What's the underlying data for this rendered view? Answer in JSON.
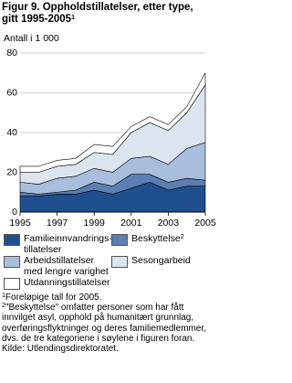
{
  "chart_data": {
    "type": "stacked_area",
    "title": "Figur 9. Oppholdstillatelser, etter type, gitt 1995-2005",
    "title_note": "1",
    "y_label": "Antall i 1 000",
    "x": [
      1995,
      1996,
      1997,
      1998,
      1999,
      2000,
      2001,
      2002,
      2003,
      2004,
      2005
    ],
    "xlim": [
      1995,
      2005
    ],
    "xticks": [
      1995,
      1997,
      1999,
      2001,
      2003,
      2005
    ],
    "ylim": [
      0,
      80
    ],
    "yticks": [
      0,
      20,
      40,
      60,
      80
    ],
    "grid": true,
    "series": [
      {
        "name": "Familieinnvandrings-\ntillatelser",
        "color": "#1f4f8f",
        "values": [
          8,
          8,
          9,
          9,
          11,
          9,
          12,
          15,
          11,
          13,
          13
        ]
      },
      {
        "name": "Beskyttelse",
        "note": "2",
        "color": "#5b7fb3",
        "values": [
          2,
          1,
          1,
          2,
          4,
          4,
          7,
          4,
          4,
          4,
          3
        ]
      },
      {
        "name": "Arbeidstillatelser\nmed lengre varighet",
        "color": "#a9bedd",
        "values": [
          5,
          5,
          7,
          7,
          7,
          7,
          8,
          9,
          9,
          15,
          19
        ]
      },
      {
        "name": "Sesongarbeid",
        "color": "#dce4f0",
        "values": [
          5,
          6,
          6,
          6,
          8,
          9,
          13,
          17,
          17,
          18,
          29
        ]
      },
      {
        "name": "Utdanningstillatelser",
        "color": "#ffffff",
        "values": [
          3,
          3,
          3,
          3,
          4,
          4,
          3,
          3,
          3,
          3,
          6
        ]
      }
    ],
    "footnotes": [
      {
        "marker": "1",
        "text": "Foreløpige tall for 2005."
      },
      {
        "marker": "2",
        "text": "\"Beskyttelse\" omfatter personer som har fått innvilget asyl, opphold på humanitært grunnlag, overføringsflyktninger og deres familiemedlemmer, dvs. de tre kategoriene i søylene i figuren foran."
      }
    ],
    "source": "Kilde: Utlendingsdirektoratet."
  }
}
